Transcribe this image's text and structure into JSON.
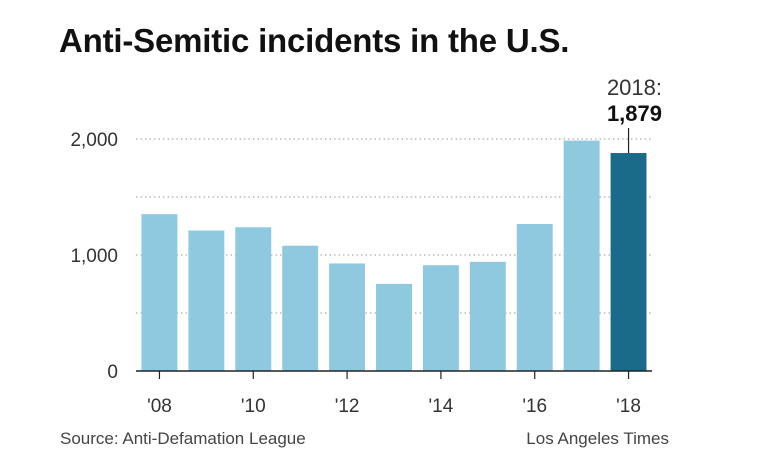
{
  "chart_data": {
    "type": "bar",
    "title": "Anti-Semitic incidents in the U.S.",
    "categories": [
      "2008",
      "2009",
      "2010",
      "2011",
      "2012",
      "2013",
      "2014",
      "2015",
      "2016",
      "2017",
      "2018"
    ],
    "values": [
      1352,
      1211,
      1239,
      1080,
      927,
      751,
      912,
      941,
      1267,
      1986,
      1879
    ],
    "x_tick_labels": [
      "'08",
      "'10",
      "'12",
      "'14",
      "'16",
      "'18"
    ],
    "y_ticks": [
      0,
      1000,
      2000
    ],
    "y_tick_labels": [
      "0",
      "1,000",
      "2,000"
    ],
    "ylim": [
      0,
      2000
    ],
    "grid": "dotted horizontal",
    "highlight": {
      "index": 10,
      "year_label": "2018:",
      "value_label": "1,879",
      "color": "#1a6a8a"
    },
    "bar_color": "#8ec9e0",
    "xlabel": "",
    "ylabel": ""
  },
  "footer": {
    "source": "Source: Anti-Defamation League",
    "credit": "Los Angeles Times"
  }
}
